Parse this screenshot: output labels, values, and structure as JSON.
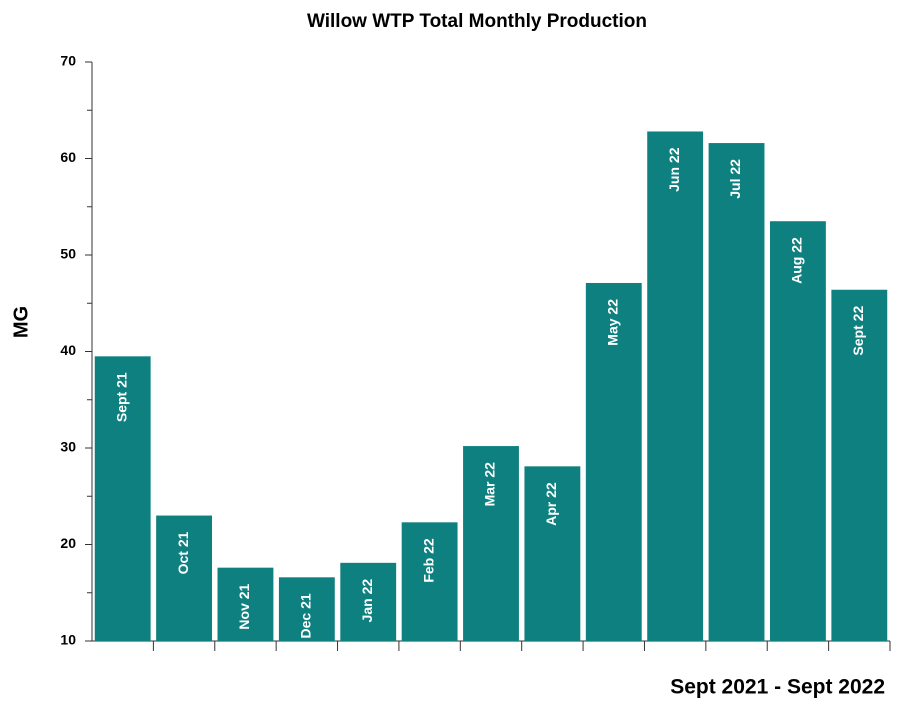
{
  "chart_data": {
    "type": "bar",
    "title": "Willow WTP Total Monthly Production",
    "xlabel": "Sept 2021 - Sept 2022",
    "ylabel": "MG",
    "categories": [
      "Sept 21",
      "Oct 21",
      "Nov 21",
      "Dec 21",
      "Jan 22",
      "Feb 22",
      "Mar 22",
      "Apr 22",
      "May 22",
      "Jun 22",
      "Jul 22",
      "Aug 22",
      "Sept 22"
    ],
    "values": [
      39.5,
      23.0,
      17.6,
      16.6,
      18.1,
      22.3,
      30.2,
      28.1,
      47.1,
      62.8,
      61.6,
      53.5,
      46.4
    ],
    "color": "#0f8080",
    "ylim": [
      10,
      70
    ],
    "yticks": [
      10,
      20,
      30,
      40,
      50,
      60,
      70
    ],
    "yticks_minor": [
      15,
      25,
      35,
      45,
      55,
      65
    ],
    "grid": false
  }
}
